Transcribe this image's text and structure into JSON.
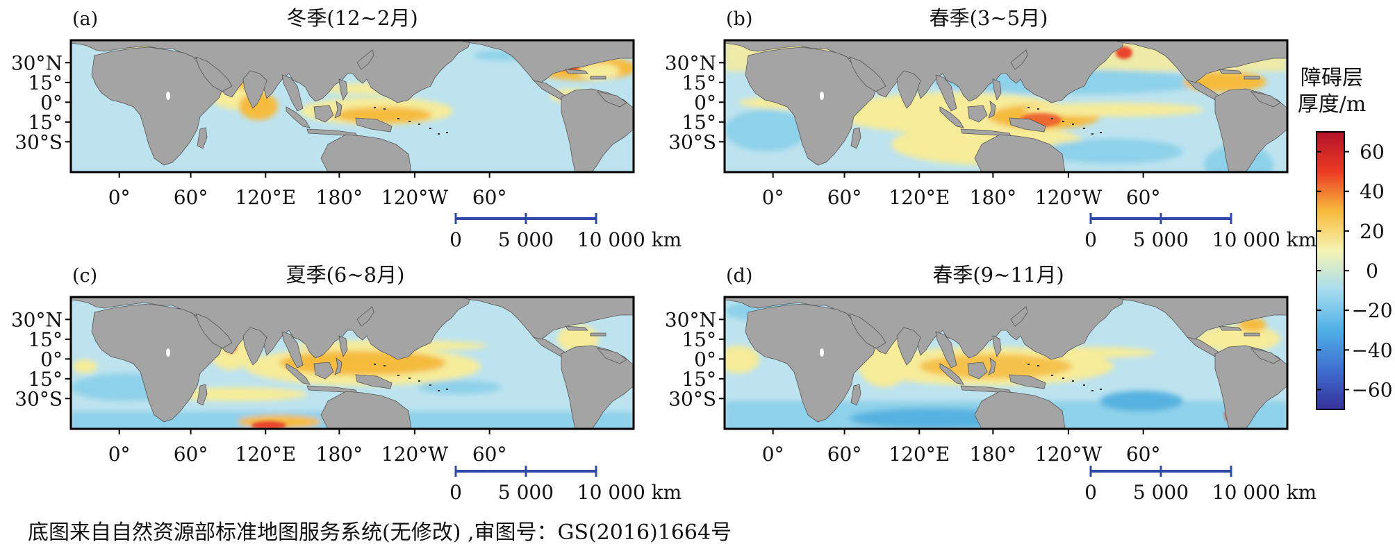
{
  "panels": [
    {
      "id": "a",
      "label": "(a)",
      "title": "冬季(12~2月)",
      "lat_labels": [
        "30°N",
        "15°",
        "0°",
        "15°",
        "30°S"
      ],
      "lon_labels": [
        "0°",
        "60°",
        "120°E",
        "180°",
        "120°W",
        "60°"
      ]
    },
    {
      "id": "b",
      "label": "(b)",
      "title": "春季(3~5月)",
      "lat_labels": [
        "30°N",
        "15°",
        "0°",
        "15°",
        "30°S"
      ],
      "lon_labels": [
        "0°",
        "60°",
        "120°E",
        "180°",
        "120°W",
        "60°"
      ]
    },
    {
      "id": "c",
      "label": "(c)",
      "title": "夏季(6~8月)",
      "lat_labels": [
        "30°N",
        "15°",
        "0°",
        "15°",
        "30°S"
      ],
      "lon_labels": [
        "0°",
        "60°",
        "120°E",
        "180°",
        "120°W",
        "60°"
      ]
    },
    {
      "id": "d",
      "label": "(d)",
      "title": "春季(9~11月)",
      "lat_labels": [
        "30°N",
        "15°",
        "0°",
        "15°",
        "30°S"
      ],
      "lon_labels": [
        "0°",
        "60°",
        "120°E",
        "180°",
        "120°W",
        "60°"
      ]
    }
  ],
  "scalebar": {
    "labels": [
      "0",
      "5 000",
      "10 000 km"
    ],
    "color": "#2f49a8"
  },
  "colorbar": {
    "title_line1": "障碍层",
    "title_line2": "厚度/m",
    "ticks": [
      "60",
      "40",
      "20",
      "0",
      "−20",
      "−40",
      "−60"
    ],
    "tick_values": [
      60,
      40,
      20,
      0,
      -20,
      -40,
      -60
    ],
    "range": [
      -70,
      70
    ],
    "stops": [
      "#36319a",
      "#3f6fd0",
      "#4fb0e6",
      "#a6dcef",
      "#f6f4b4",
      "#f7ba3c",
      "#ec3b24",
      "#b3122a"
    ]
  },
  "colors": {
    "ocean": "#bde3ef",
    "land": "#a4a4a4",
    "warm_low": "#f6ec9a",
    "warm_mid": "#f5bb3d",
    "warm_high": "#e9442a",
    "cool_low": "#8ed1ea",
    "cool_mid": "#56b2e0"
  },
  "caption": "底图来自自然资源部标准地图服务系统(无修改) ,审图号：GS(2016)1664号"
}
